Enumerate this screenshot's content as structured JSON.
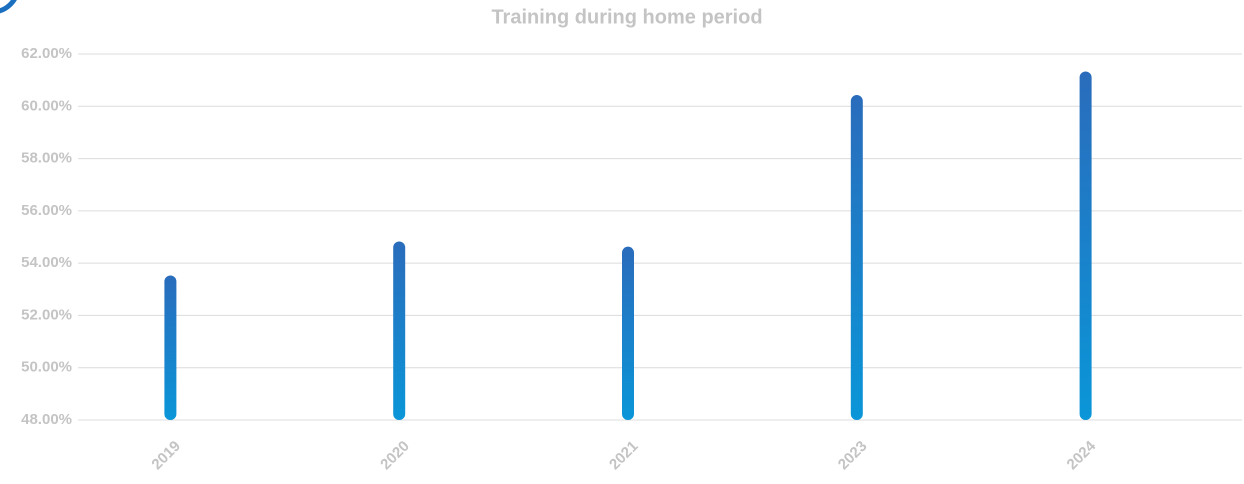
{
  "chart_data": {
    "type": "bar",
    "title": "Training during home period",
    "categories": [
      "2019",
      "2020",
      "2021",
      "2023",
      "2024"
    ],
    "values": [
      53.3,
      54.6,
      54.4,
      60.2,
      61.1
    ],
    "gradient": [
      "#2a6cbc",
      "#0a96d8"
    ],
    "ylim": [
      48,
      62
    ],
    "yticks": [
      {
        "value": 48,
        "label": "48.00%"
      },
      {
        "value": 50,
        "label": "50.00%"
      },
      {
        "value": 52,
        "label": "52.00%"
      },
      {
        "value": 54,
        "label": "54.00%"
      },
      {
        "value": 56,
        "label": "56.00%"
      },
      {
        "value": 58,
        "label": "58.00%"
      },
      {
        "value": 60,
        "label": "60.00%"
      },
      {
        "value": 62,
        "label": "62.00%"
      }
    ],
    "grid": true
  }
}
